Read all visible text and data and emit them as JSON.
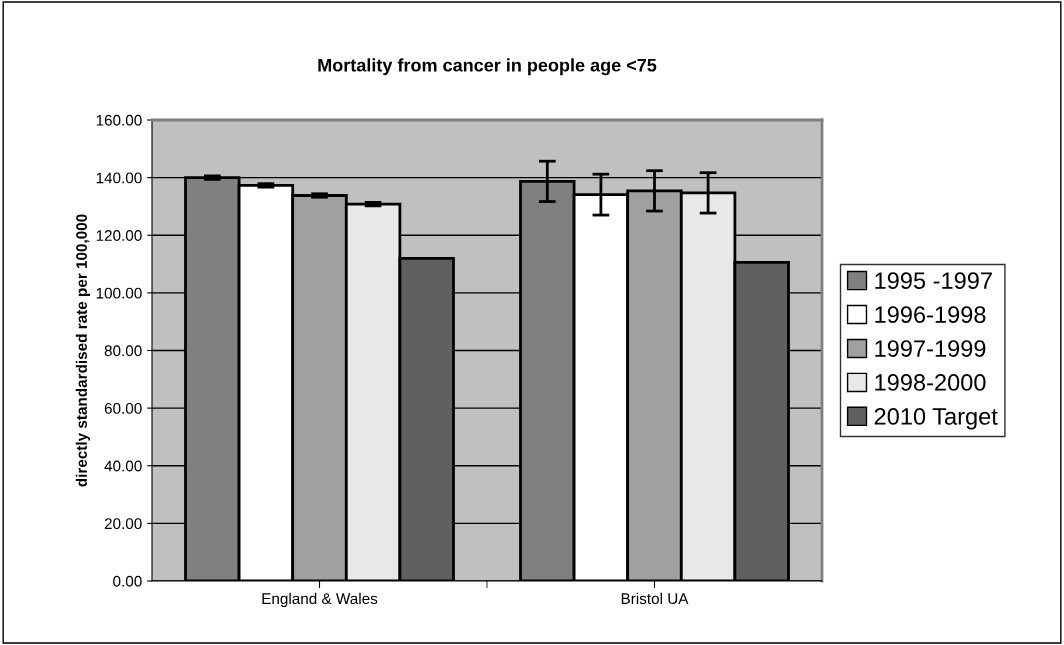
{
  "chart_data": {
    "type": "bar",
    "title": "Mortality from cancer in people age <75",
    "ylabel": "directly standardised rate per 100,000",
    "categories": [
      "England & Wales",
      "Bristol UA"
    ],
    "series": [
      {
        "name": "1995 -1997",
        "color": "#808080",
        "values": [
          140.0,
          138.7
        ],
        "errors": [
          0.6,
          7.0
        ]
      },
      {
        "name": "1996-1998",
        "color": "#ffffff",
        "values": [
          137.3,
          134.1
        ],
        "errors": [
          0.6,
          7.1
        ]
      },
      {
        "name": "1997-1999",
        "color": "#a0a0a0",
        "values": [
          133.8,
          135.4
        ],
        "errors": [
          0.6,
          7.0
        ]
      },
      {
        "name": "1998-2000",
        "color": "#e8e8e8",
        "values": [
          130.8,
          134.7
        ],
        "errors": [
          0.6,
          7.0
        ]
      },
      {
        "name": "2010 Target",
        "color": "#606060",
        "values": [
          112.0,
          110.6
        ]
      }
    ],
    "ylim": [
      0,
      160
    ],
    "yticks": [
      {
        "value": 0,
        "label": "0.00"
      },
      {
        "value": 20,
        "label": "20.00"
      },
      {
        "value": 40,
        "label": "40.00"
      },
      {
        "value": 60,
        "label": "60.00"
      },
      {
        "value": 80,
        "label": "80.00"
      },
      {
        "value": 100,
        "label": "100.00"
      },
      {
        "value": 120,
        "label": "120.00"
      },
      {
        "value": 140,
        "label": "140.00"
      },
      {
        "value": 160,
        "label": "160.00"
      }
    ],
    "grid": "y",
    "legend": "right"
  }
}
